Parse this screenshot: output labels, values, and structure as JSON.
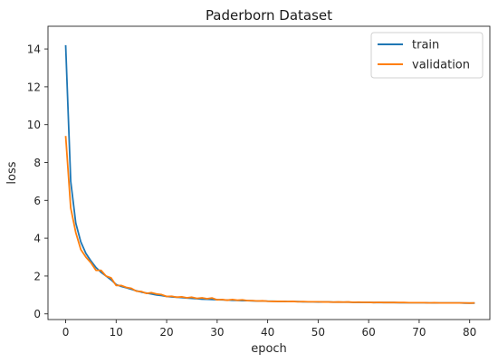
{
  "chart_data": {
    "type": "line",
    "title": "Paderborn Dataset",
    "xlabel": "epoch",
    "ylabel": "loss",
    "xlim": [
      -3.5,
      84
    ],
    "ylim": [
      -0.3,
      15.2
    ],
    "xticks": [
      0,
      10,
      20,
      30,
      40,
      50,
      60,
      70,
      80
    ],
    "yticks": [
      0,
      2,
      4,
      6,
      8,
      10,
      12,
      14
    ],
    "grid": false,
    "legend_position": "top-right",
    "series": [
      {
        "name": "train",
        "color": "#1f77b4",
        "x": [
          0,
          1,
          2,
          3,
          4,
          5,
          6,
          7,
          8,
          9,
          10,
          11,
          12,
          13,
          14,
          15,
          16,
          17,
          18,
          19,
          20,
          21,
          22,
          23,
          24,
          25,
          26,
          27,
          28,
          29,
          30,
          31,
          32,
          33,
          34,
          35,
          36,
          37,
          38,
          39,
          40,
          41,
          42,
          43,
          44,
          45,
          46,
          47,
          48,
          49,
          50,
          51,
          52,
          53,
          54,
          55,
          56,
          57,
          58,
          59,
          60,
          61,
          62,
          63,
          64,
          65,
          66,
          67,
          68,
          69,
          70,
          71,
          72,
          73,
          74,
          75,
          76,
          77,
          78,
          79,
          80,
          81
        ],
        "values": [
          14.2,
          7.0,
          4.8,
          3.8,
          3.2,
          2.8,
          2.45,
          2.2,
          2.0,
          1.8,
          1.55,
          1.45,
          1.38,
          1.3,
          1.22,
          1.15,
          1.1,
          1.05,
          1.0,
          0.97,
          0.92,
          0.9,
          0.88,
          0.86,
          0.84,
          0.82,
          0.8,
          0.78,
          0.77,
          0.76,
          0.75,
          0.74,
          0.73,
          0.72,
          0.71,
          0.7,
          0.7,
          0.69,
          0.68,
          0.68,
          0.67,
          0.67,
          0.66,
          0.66,
          0.65,
          0.65,
          0.65,
          0.64,
          0.64,
          0.64,
          0.63,
          0.63,
          0.63,
          0.62,
          0.62,
          0.62,
          0.62,
          0.61,
          0.61,
          0.61,
          0.61,
          0.6,
          0.6,
          0.6,
          0.6,
          0.6,
          0.59,
          0.59,
          0.59,
          0.59,
          0.59,
          0.59,
          0.58,
          0.58,
          0.58,
          0.58,
          0.58,
          0.58,
          0.58,
          0.57,
          0.57,
          0.57
        ]
      },
      {
        "name": "validation",
        "color": "#ff7f0e",
        "x": [
          0,
          1,
          2,
          3,
          4,
          5,
          6,
          7,
          8,
          9,
          10,
          11,
          12,
          13,
          14,
          15,
          16,
          17,
          18,
          19,
          20,
          21,
          22,
          23,
          24,
          25,
          26,
          27,
          28,
          29,
          30,
          31,
          32,
          33,
          34,
          35,
          36,
          37,
          38,
          39,
          40,
          41,
          42,
          43,
          44,
          45,
          46,
          47,
          48,
          49,
          50,
          51,
          52,
          53,
          54,
          55,
          56,
          57,
          58,
          59,
          60,
          61,
          62,
          63,
          64,
          65,
          66,
          67,
          68,
          69,
          70,
          71,
          72,
          73,
          74,
          75,
          76,
          77,
          78,
          79,
          80,
          81
        ],
        "values": [
          9.4,
          5.6,
          4.3,
          3.4,
          3.0,
          2.7,
          2.3,
          2.3,
          2.0,
          1.9,
          1.5,
          1.5,
          1.4,
          1.35,
          1.2,
          1.18,
          1.08,
          1.12,
          1.05,
          1.02,
          0.92,
          0.93,
          0.88,
          0.9,
          0.85,
          0.88,
          0.82,
          0.85,
          0.8,
          0.84,
          0.74,
          0.76,
          0.72,
          0.76,
          0.72,
          0.74,
          0.7,
          0.7,
          0.68,
          0.69,
          0.67,
          0.66,
          0.66,
          0.66,
          0.65,
          0.66,
          0.64,
          0.65,
          0.64,
          0.64,
          0.64,
          0.63,
          0.63,
          0.62,
          0.63,
          0.62,
          0.63,
          0.61,
          0.62,
          0.61,
          0.61,
          0.6,
          0.61,
          0.6,
          0.6,
          0.6,
          0.6,
          0.6,
          0.59,
          0.59,
          0.59,
          0.59,
          0.58,
          0.59,
          0.58,
          0.58,
          0.58,
          0.58,
          0.58,
          0.58,
          0.57,
          0.58
        ]
      }
    ]
  }
}
